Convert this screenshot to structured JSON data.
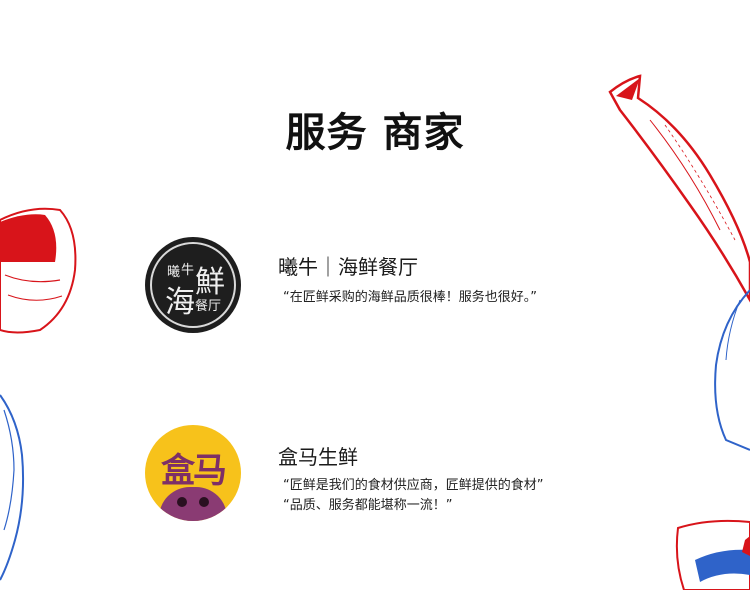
{
  "header": {
    "title": "服务 商家"
  },
  "merchants": [
    {
      "name": "曦牛｜海鲜餐厅",
      "logo": {
        "small_left": "曦",
        "small_right": "牛",
        "big_a": "海",
        "big_b": "鮮",
        "small_bottom": "餐厅",
        "bg_color": "#1e1e1e"
      },
      "quote_lines": [
        "“在匠鲜采购的海鲜品质很棒！服务也很好。”"
      ]
    },
    {
      "name": "盒马生鲜",
      "logo": {
        "mark": "盒马",
        "bg_color": "#f7c21b",
        "mark_color": "#7d2f67"
      },
      "quote_lines": [
        "“匠鲜是我们的食材供应商，匠鲜提供的食材”",
        "“品质、服务都能堪称一流！”"
      ]
    }
  ],
  "decoration": {
    "accent_red": "#d8141a",
    "accent_blue": "#2f63c9"
  }
}
